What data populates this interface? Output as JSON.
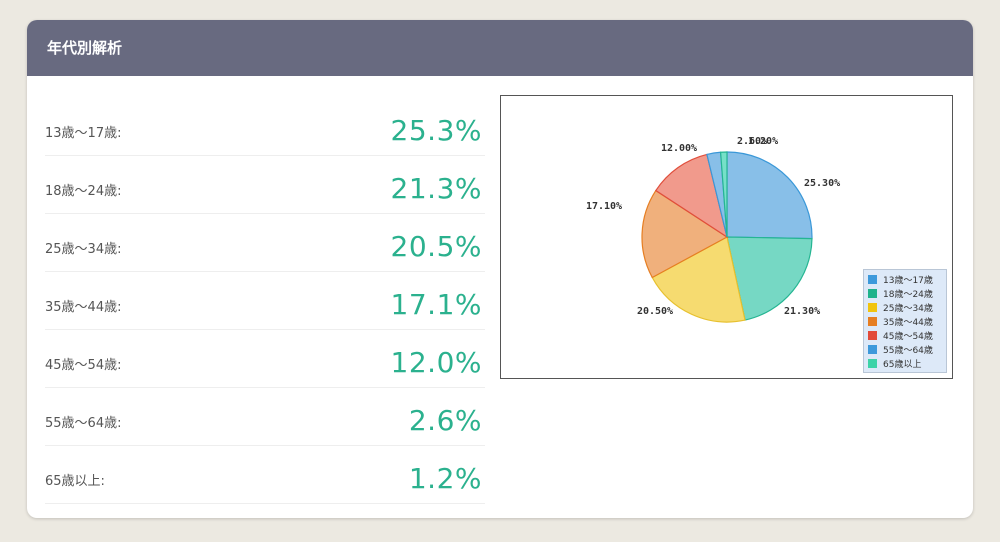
{
  "panel": {
    "title": "年代別解析"
  },
  "rows": [
    {
      "label": "13歳〜17歳:",
      "value": "25.3%"
    },
    {
      "label": "18歳〜24歳:",
      "value": "21.3%"
    },
    {
      "label": "25歳〜34歳:",
      "value": "20.5%"
    },
    {
      "label": "35歳〜44歳:",
      "value": "17.1%"
    },
    {
      "label": "45歳〜54歳:",
      "value": "12.0%"
    },
    {
      "label": "55歳〜64歳:",
      "value": "2.6%"
    },
    {
      "label": "65歳以上:",
      "value": "1.2%"
    }
  ],
  "chart_data": {
    "type": "pie",
    "title": "",
    "legend_placement": "bottom-right",
    "slices": [
      {
        "label": "13歳〜17歳",
        "value": 25.3,
        "data_label": "25.30%",
        "color": "#88bfe8",
        "stroke": "#3a98d8",
        "legend_color": "#3d99db"
      },
      {
        "label": "18歳〜24歳",
        "value": 21.3,
        "data_label": "21.30%",
        "color": "#76d8c4",
        "stroke": "#25b592",
        "legend_color": "#1fb38c"
      },
      {
        "label": "25歳〜34歳",
        "value": 20.5,
        "data_label": "20.50%",
        "color": "#f6db70",
        "stroke": "#e7c02e",
        "legend_color": "#f1c40f"
      },
      {
        "label": "35歳〜44歳",
        "value": 17.1,
        "data_label": "17.10%",
        "color": "#f0b07c",
        "stroke": "#e67e22",
        "legend_color": "#e67e22"
      },
      {
        "label": "45歳〜54歳",
        "value": 12.0,
        "data_label": "12.00%",
        "color": "#f19a8c",
        "stroke": "#e04e3c",
        "legend_color": "#e24a3a"
      },
      {
        "label": "55歳〜64歳",
        "value": 2.6,
        "data_label": "2.60%",
        "color": "#88bfe8",
        "stroke": "#3a98d8",
        "legend_color": "#3d99db"
      },
      {
        "label": "65歳以上",
        "value": 1.2,
        "data_label": "1.20%",
        "color": "#76e0c8",
        "stroke": "#25b592",
        "legend_color": "#3dd3a8"
      }
    ]
  }
}
